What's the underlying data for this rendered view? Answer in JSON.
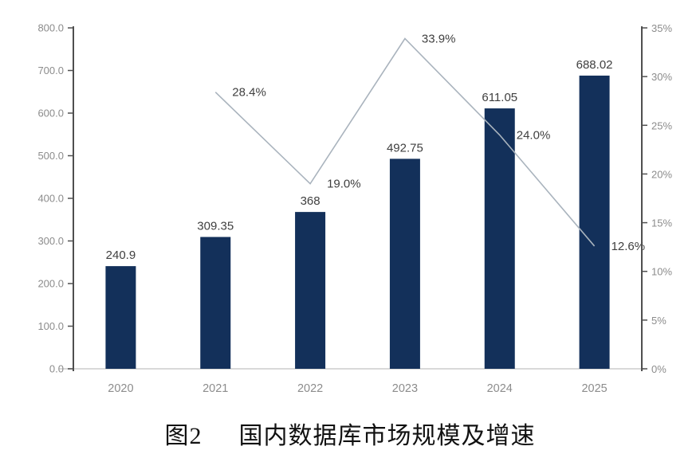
{
  "caption": {
    "figure_label": "图2",
    "title": "国内数据库市场规模及增速"
  },
  "colors": {
    "bar": "#13305a",
    "line": "#a9b3bd",
    "axis_dark": "#4f4f4f",
    "baseline_light": "#d9d9d9",
    "tick_label": "#8c8c8c",
    "data_label": "#3f3f3f",
    "background": "#ffffff"
  },
  "chart_data": {
    "type": "bar",
    "title": "图2 国内数据库市场规模及增速",
    "categories": [
      "2020",
      "2021",
      "2022",
      "2023",
      "2024",
      "2025"
    ],
    "series": [
      {
        "name": "market-size-bars",
        "type": "bar",
        "axis": "left",
        "color": "#13305a",
        "values": [
          240.9,
          309.35,
          368,
          492.75,
          611.05,
          688.02
        ],
        "labels": [
          "240.9",
          "309.35",
          "368",
          "492.75",
          "611.05",
          "688.02"
        ]
      },
      {
        "name": "growth-rate-line",
        "type": "line",
        "axis": "right",
        "color": "#a9b3bd",
        "values": [
          null,
          28.4,
          19.0,
          33.9,
          24.0,
          12.6
        ],
        "labels": [
          "",
          "28.4%",
          "19.0%",
          "33.9%",
          "24.0%",
          "12.6%"
        ]
      }
    ],
    "left_axis": {
      "min": 0,
      "max": 800,
      "step": 100,
      "tick_labels": [
        "0.0",
        "100.0",
        "200.0",
        "300.0",
        "400.0",
        "500.0",
        "600.0",
        "700.0",
        "800.0"
      ]
    },
    "right_axis": {
      "min": 0,
      "max": 35,
      "step": 5,
      "tick_labels": [
        "0%",
        "5%",
        "10%",
        "15%",
        "20%",
        "25%",
        "30%",
        "35%"
      ]
    },
    "grid": false,
    "legend": "none"
  }
}
